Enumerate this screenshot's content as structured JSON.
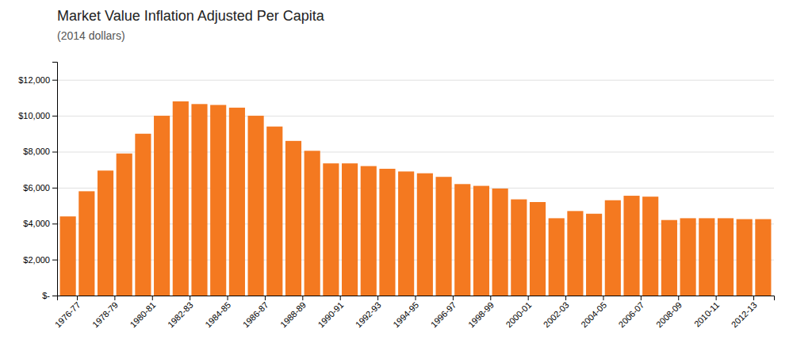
{
  "chart_data": {
    "type": "bar",
    "title": "Market Value Inflation Adjusted Per Capita",
    "subtitle": "(2014 dollars)",
    "categories": [
      "1976-77",
      null,
      "1978-79",
      null,
      "1980-81",
      null,
      "1982-83",
      null,
      "1984-85",
      null,
      "1986-87",
      null,
      "1988-89",
      null,
      "1990-91",
      null,
      "1992-93",
      null,
      "1994-95",
      null,
      "1996-97",
      null,
      "1998-99",
      null,
      "2000-01",
      null,
      "2002-03",
      null,
      "2004-05",
      null,
      "2006-07",
      null,
      "2008-09",
      null,
      "2010-11",
      null,
      "2012-13",
      null
    ],
    "values": [
      4400,
      5800,
      6950,
      7900,
      9000,
      10000,
      10800,
      10650,
      10600,
      10450,
      10000,
      9400,
      8600,
      8050,
      7350,
      7350,
      7200,
      7050,
      6900,
      6800,
      6600,
      6200,
      6100,
      5950,
      5350,
      5200,
      4300,
      4700,
      4550,
      5300,
      5550,
      5500,
      4200,
      4300,
      4300,
      4300,
      4250,
      4250
    ],
    "color": "#F47920",
    "ylim": [
      0,
      13000
    ],
    "yticks": [
      {
        "value": 0,
        "label": "$-"
      },
      {
        "value": 2000,
        "label": "$2,000"
      },
      {
        "value": 4000,
        "label": "$4,000"
      },
      {
        "value": 6000,
        "label": "$6,000"
      },
      {
        "value": 8000,
        "label": "$8,000"
      },
      {
        "value": 10000,
        "label": "$10,000"
      },
      {
        "value": 12000,
        "label": "$12,000"
      }
    ],
    "grid": true
  }
}
